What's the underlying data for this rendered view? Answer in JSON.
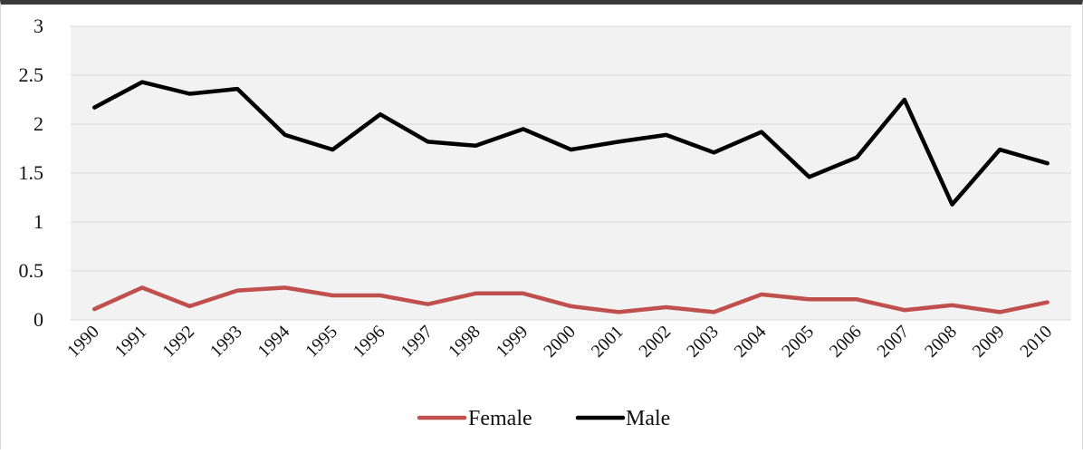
{
  "chart_data": {
    "type": "line",
    "title": "",
    "xlabel": "",
    "ylabel": "",
    "x": [
      "1990",
      "1991",
      "1992",
      "1993",
      "1994",
      "1995",
      "1996",
      "1997",
      "1998",
      "1999",
      "2000",
      "2001",
      "2002",
      "2003",
      "2004",
      "2005",
      "2006",
      "2007",
      "2008",
      "2009",
      "2010"
    ],
    "ylim": [
      0,
      3
    ],
    "yticks": [
      "0",
      "0.5",
      "1",
      "1.5",
      "2",
      "2.5",
      "3"
    ],
    "ytick_values": [
      0,
      0.5,
      1,
      1.5,
      2,
      2.5,
      3
    ],
    "grid": true,
    "legend_position": "bottom",
    "series": [
      {
        "name": "Female",
        "color": "#c0504d",
        "values": [
          0.11,
          0.33,
          0.14,
          0.3,
          0.33,
          0.25,
          0.25,
          0.16,
          0.27,
          0.27,
          0.14,
          0.08,
          0.13,
          0.08,
          0.26,
          0.21,
          0.21,
          0.1,
          0.15,
          0.08,
          0.18
        ]
      },
      {
        "name": "Male",
        "color": "#000000",
        "values": [
          2.17,
          2.43,
          2.31,
          2.36,
          1.89,
          1.74,
          2.1,
          1.82,
          1.78,
          1.95,
          1.74,
          1.82,
          1.89,
          1.71,
          1.92,
          1.46,
          1.66,
          2.25,
          1.18,
          1.74,
          1.6
        ]
      }
    ],
    "colors": {
      "plot_background": "#f2f2f2",
      "gridline": "#d9d9d9"
    }
  }
}
